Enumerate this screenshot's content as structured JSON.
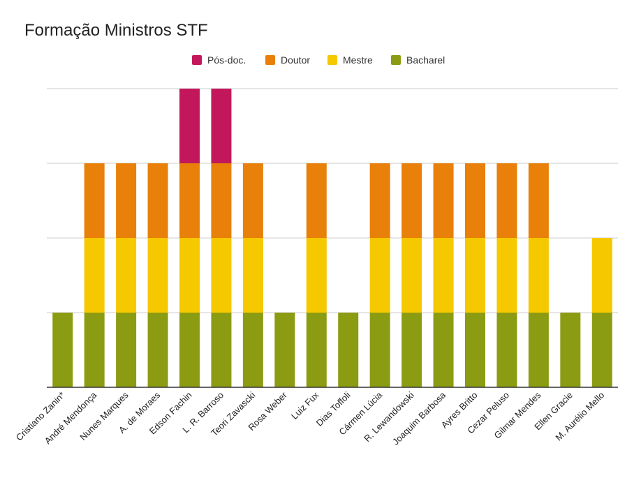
{
  "chart_data": {
    "type": "bar",
    "stacked": true,
    "title": "Formação Ministros STF",
    "xlabel": "",
    "ylabel": "",
    "ylim": [
      0,
      4
    ],
    "grid": true,
    "legend_position": "top",
    "categories": [
      "Cristiano Zanin*",
      "André Mendonça",
      "Nunes Marques",
      "A. de Moraes",
      "Edson Fachin",
      "L. R. Barroso",
      "Teori Zavascki",
      "Rosa Weber",
      "Luiz Fux",
      "Dias Toffoli",
      "Cármen Lúcia",
      "R. Lewandowski",
      "Joaquim Barbosa",
      "Ayres Britto",
      "Cezar Peluso",
      "Gilmar Mendes",
      "Ellen Gracie",
      "M. Aurélio Mello"
    ],
    "series": [
      {
        "name": "Bacharel",
        "color": "#8c9c12",
        "values": [
          1,
          1,
          1,
          1,
          1,
          1,
          1,
          1,
          1,
          1,
          1,
          1,
          1,
          1,
          1,
          1,
          1,
          1
        ]
      },
      {
        "name": "Mestre",
        "color": "#f6c800",
        "values": [
          0,
          1,
          1,
          1,
          1,
          1,
          1,
          0,
          1,
          0,
          1,
          1,
          1,
          1,
          1,
          1,
          0,
          1
        ]
      },
      {
        "name": "Doutor",
        "color": "#e8800a",
        "values": [
          0,
          1,
          1,
          1,
          1,
          1,
          1,
          0,
          1,
          0,
          1,
          1,
          1,
          1,
          1,
          1,
          0,
          0
        ]
      },
      {
        "name": "Pós-doc.",
        "color": "#c2185b",
        "values": [
          0,
          0,
          0,
          0,
          1,
          1,
          0,
          0,
          0,
          0,
          0,
          0,
          0,
          0,
          0,
          0,
          0,
          0
        ]
      }
    ],
    "legend_order": [
      "Pós-doc.",
      "Doutor",
      "Mestre",
      "Bacharel"
    ]
  }
}
